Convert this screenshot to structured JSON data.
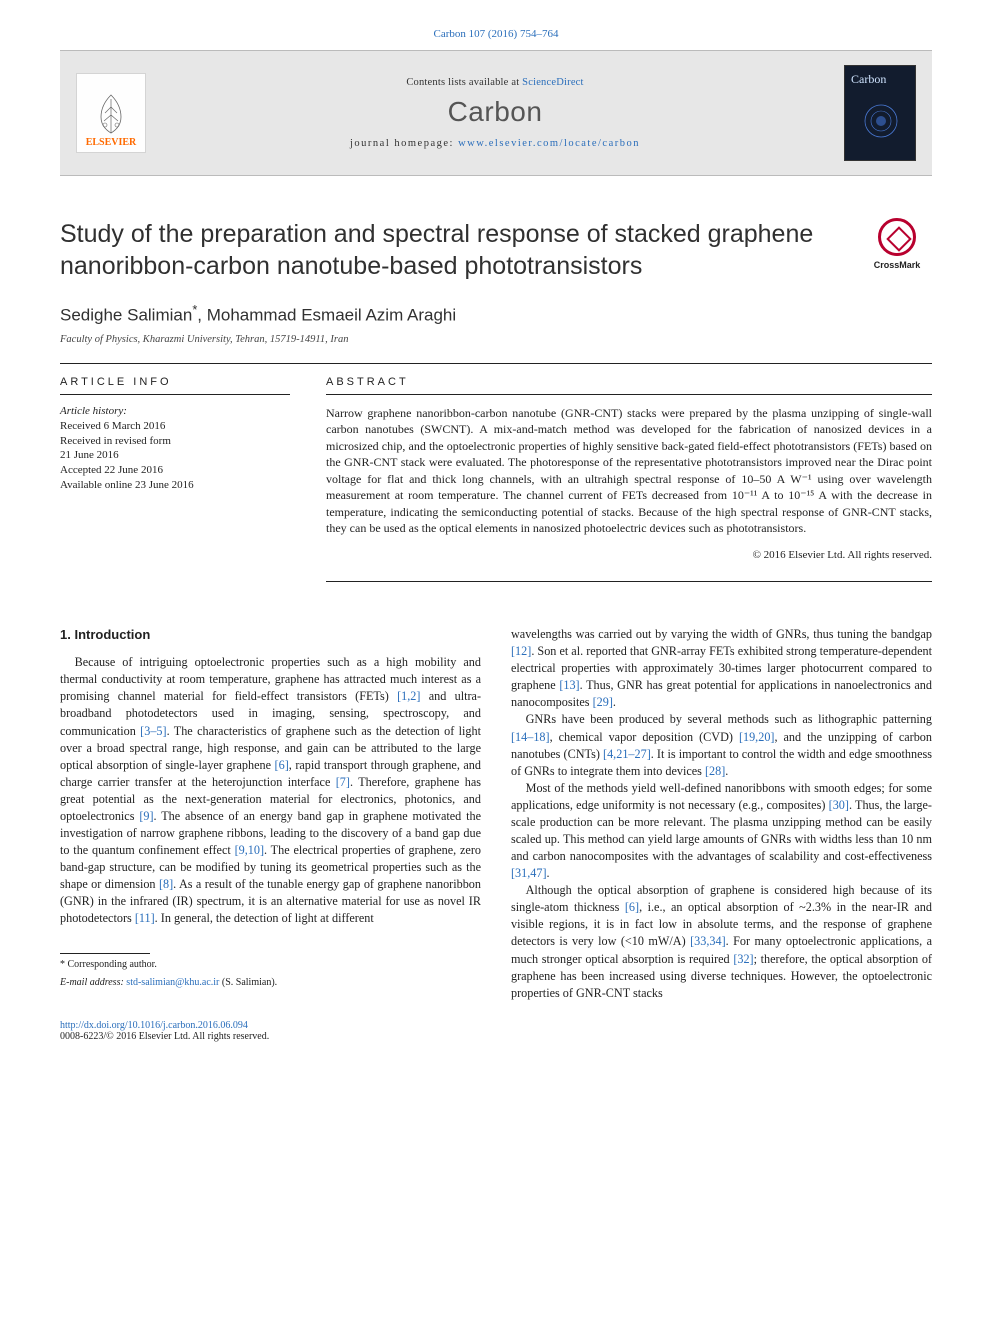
{
  "header": {
    "ref_prefix": "Carbon 107 (2016) 754–764",
    "contents_prefix": "Contents lists available at",
    "contents_link": "ScienceDirect",
    "journal": "Carbon",
    "homepage_prefix": "journal homepage:",
    "homepage_url": "www.elsevier.com/locate/carbon",
    "publisher_label": "ELSEVIER",
    "cover_label": "Carbon",
    "crossmark_label": "CrossMark",
    "colors": {
      "link": "#2a6ebb",
      "publisher": "#ff6a00",
      "header_bg": "#e7e7e7",
      "crossmark_ring": "#b8002e"
    }
  },
  "article": {
    "title": "Study of the preparation and spectral response of stacked graphene nanoribbon-carbon nanotube-based phototransistors",
    "authors": "Sedighe Salimian",
    "author_sup": "*",
    "author2": ", Mohammad Esmaeil Azim Araghi",
    "affiliation": "Faculty of Physics, Kharazmi University, Tehran, 15719-14911, Iran"
  },
  "info": {
    "label": "ARTICLE INFO",
    "history_head": "Article history:",
    "lines": [
      "Received 6 March 2016",
      "Received in revised form",
      "21 June 2016",
      "Accepted 22 June 2016",
      "Available online 23 June 2016"
    ]
  },
  "abstract": {
    "label": "ABSTRACT",
    "text": "Narrow graphene nanoribbon-carbon nanotube (GNR-CNT) stacks were prepared by the plasma unzipping of single-wall carbon nanotubes (SWCNT). A mix-and-match method was developed for the fabrication of nanosized devices in a microsized chip, and the optoelectronic properties of highly sensitive back-gated field-effect phototransistors (FETs) based on the GNR-CNT stack were evaluated. The photoresponse of the representative phototransistors improved near the Dirac point voltage for flat and thick long channels, with an ultrahigh spectral response of 10–50 A W⁻¹ using over wavelength measurement at room temperature. The channel current of FETs decreased from 10⁻¹¹ A to 10⁻¹⁵ A with the decrease in temperature, indicating the semiconducting potential of stacks. Because of the high spectral response of GNR-CNT stacks, they can be used as the optical elements in nanosized photoelectric devices such as phototransistors.",
    "copyright": "© 2016 Elsevier Ltd. All rights reserved."
  },
  "body": {
    "intro_heading": "1. Introduction",
    "left": [
      "Because of intriguing optoelectronic properties such as a high mobility and thermal conductivity at room temperature, graphene has attracted much interest as a promising channel material for field-effect transistors (FETs) <span class=\"ref\">[1,2]</span> and ultra-broadband photodetectors used in imaging, sensing, spectroscopy, and communication <span class=\"ref\">[3–5]</span>. The characteristics of graphene such as the detection of light over a broad spectral range, high response, and gain can be attributed to the large optical absorption of single-layer graphene <span class=\"ref\">[6]</span>, rapid transport through graphene, and charge carrier transfer at the heterojunction interface <span class=\"ref\">[7]</span>. Therefore, graphene has great potential as the next-generation material for electronics, photonics, and optoelectronics <span class=\"ref\">[9]</span>. The absence of an energy band gap in graphene motivated the investigation of narrow graphene ribbons, leading to the discovery of a band gap due to the quantum confinement effect <span class=\"ref\">[9,10]</span>. The electrical properties of graphene, zero band-gap structure, can be modified by tuning its geometrical properties such as the shape or dimension <span class=\"ref\">[8]</span>. As a result of the tunable energy gap of graphene nanoribbon (GNR) in the infrared (IR) spectrum, it is an alternative material for use as novel IR photodetectors <span class=\"ref\">[11]</span>. In general, the detection of light at different"
    ],
    "right": [
      "wavelengths was carried out by varying the width of GNRs, thus tuning the bandgap <span class=\"ref\">[12]</span>. Son et al. reported that GNR-array FETs exhibited strong temperature-dependent electrical properties with approximately 30-times larger photocurrent compared to graphene <span class=\"ref\">[13]</span>. Thus, GNR has great potential for applications in nanoelectronics and nanocomposites <span class=\"ref\">[29]</span>.",
      "GNRs have been produced by several methods such as lithographic patterning <span class=\"ref\">[14–18]</span>, chemical vapor deposition (CVD) <span class=\"ref\">[19,20]</span>, and the unzipping of carbon nanotubes (CNTs) <span class=\"ref\">[4,21–27]</span>. It is important to control the width and edge smoothness of GNRs to integrate them into devices <span class=\"ref\">[28]</span>.",
      "Most of the methods yield well-defined nanoribbons with smooth edges; for some applications, edge uniformity is not necessary (e.g., composites) <span class=\"ref\">[30]</span>. Thus, the large-scale production can be more relevant. The plasma unzipping method can be easily scaled up. This method can yield large amounts of GNRs with widths less than 10 nm and carbon nanocomposites with the advantages of scalability and cost-effectiveness <span class=\"ref\">[31,47]</span>.",
      "Although the optical absorption of graphene is considered high because of its single-atom thickness <span class=\"ref\">[6]</span>, i.e., an optical absorption of ~2.3% in the near-IR and visible regions, it is in fact low in absolute terms, and the response of graphene detectors is very low (&lt;10 mW/A) <span class=\"ref\">[33,34]</span>. For many optoelectronic applications, a much stronger optical absorption is required <span class=\"ref\">[32]</span>; therefore, the optical absorption of graphene has been increased using diverse techniques. However, the optoelectronic properties of GNR-CNT stacks"
    ]
  },
  "footnote": {
    "star": "* Corresponding author.",
    "email_label": "E-mail address:",
    "email": "std-salimian@khu.ac.ir",
    "email_tail": "(S. Salimian)."
  },
  "footer": {
    "doi": "http://dx.doi.org/10.1016/j.carbon.2016.06.094",
    "issn": "0008-6223/© 2016 Elsevier Ltd. All rights reserved."
  }
}
